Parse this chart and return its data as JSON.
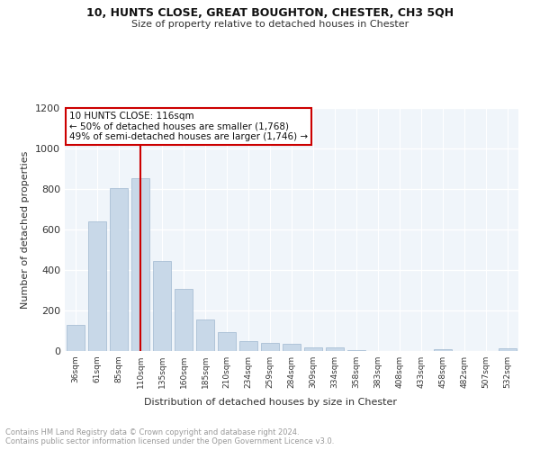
{
  "title": "10, HUNTS CLOSE, GREAT BOUGHTON, CHESTER, CH3 5QH",
  "subtitle": "Size of property relative to detached houses in Chester",
  "xlabel": "Distribution of detached houses by size in Chester",
  "ylabel": "Number of detached properties",
  "bar_color": "#c8d8e8",
  "bar_edge_color": "#a0b8d0",
  "plot_bg_color": "#f0f5fa",
  "grid_color": "#ffffff",
  "vline_color": "#cc0000",
  "annotation_text": "10 HUNTS CLOSE: 116sqm\n← 50% of detached houses are smaller (1,768)\n49% of semi-detached houses are larger (1,746) →",
  "annotation_box_color": "#cc0000",
  "footer_text": "Contains HM Land Registry data © Crown copyright and database right 2024.\nContains public sector information licensed under the Open Government Licence v3.0.",
  "categories": [
    "36sqm",
    "61sqm",
    "85sqm",
    "110sqm",
    "135sqm",
    "160sqm",
    "185sqm",
    "210sqm",
    "234sqm",
    "259sqm",
    "284sqm",
    "309sqm",
    "334sqm",
    "358sqm",
    "383sqm",
    "408sqm",
    "433sqm",
    "458sqm",
    "482sqm",
    "507sqm",
    "532sqm"
  ],
  "values": [
    130,
    640,
    805,
    855,
    445,
    305,
    155,
    95,
    50,
    40,
    35,
    18,
    18,
    5,
    0,
    0,
    0,
    10,
    0,
    0,
    12
  ],
  "ylim": [
    0,
    1200
  ],
  "yticks": [
    0,
    200,
    400,
    600,
    800,
    1000,
    1200
  ]
}
